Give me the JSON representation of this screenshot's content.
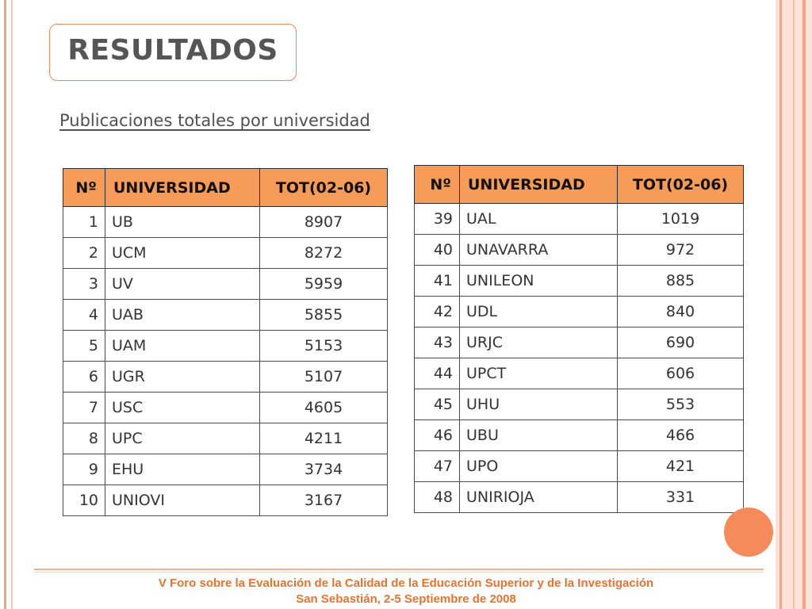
{
  "slide": {
    "title": "RESULTADOS",
    "subtitle": "Publicaciones totales por universidad"
  },
  "colors": {
    "accent": "#f79b59",
    "border_orange": "#f08a5d",
    "circle": "#f58a5b",
    "footer_text": "#e6732f"
  },
  "table_left": {
    "headers": [
      "Nº",
      "UNIVERSIDAD",
      "TOT(02-06)"
    ],
    "rows": [
      [
        "1",
        "UB",
        "8907"
      ],
      [
        "2",
        "UCM",
        "8272"
      ],
      [
        "3",
        "UV",
        "5959"
      ],
      [
        "4",
        "UAB",
        "5855"
      ],
      [
        "5",
        "UAM",
        "5153"
      ],
      [
        "6",
        "UGR",
        "5107"
      ],
      [
        "7",
        "USC",
        "4605"
      ],
      [
        "8",
        "UPC",
        "4211"
      ],
      [
        "9",
        "EHU",
        "3734"
      ],
      [
        "10",
        "UNIOVI",
        "3167"
      ]
    ]
  },
  "table_right": {
    "headers": [
      "Nº",
      "UNIVERSIDAD",
      "TOT(02-06)"
    ],
    "rows": [
      [
        "39",
        "UAL",
        "1019"
      ],
      [
        "40",
        "UNAVARRA",
        "972"
      ],
      [
        "41",
        "UNILEON",
        "885"
      ],
      [
        "42",
        "UDL",
        "840"
      ],
      [
        "43",
        "URJC",
        "690"
      ],
      [
        "44",
        "UPCT",
        "606"
      ],
      [
        "45",
        "UHU",
        "553"
      ],
      [
        "46",
        "UBU",
        "466"
      ],
      [
        "47",
        "UPO",
        "421"
      ],
      [
        "48",
        "UNIRIOJA",
        "331"
      ]
    ]
  },
  "footer": {
    "line1": "V Foro sobre la Evaluación de la Calidad de la Educación Superior y de la Investigación",
    "line2": "San Sebastián, 2-5 Septiembre de 2008"
  }
}
